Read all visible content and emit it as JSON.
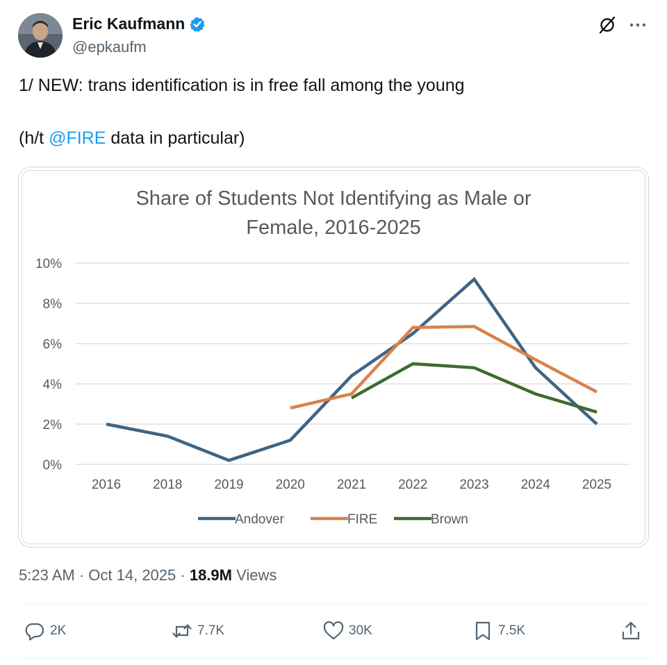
{
  "author": {
    "name": "Eric Kaufmann",
    "handle": "@epkaufm"
  },
  "tweet": {
    "line1": "1/ NEW: trans identification is in free fall among the young",
    "line2_prefix": "(h/t ",
    "line2_mention": "@FIRE",
    "line2_suffix": " data in particular)"
  },
  "meta": {
    "time": "5:23 AM",
    "sep1": " · ",
    "date": "Oct 14, 2025",
    "sep2": " · ",
    "views_count": "18.9M",
    "views_label": " Views"
  },
  "actions": {
    "replies": "2K",
    "reposts": "7.7K",
    "likes": "30K",
    "bookmarks": "7.5K"
  },
  "icons": [
    "verified-badge-icon",
    "grok-icon",
    "more-icon",
    "reply-icon",
    "repost-icon",
    "like-icon",
    "bookmark-icon",
    "share-icon"
  ],
  "colors": {
    "accent": "#1d9bf0",
    "Andover": "#3f6482",
    "FIRE": "#d9824a",
    "Brown": "#3e6b2f"
  },
  "chart_data": {
    "type": "line",
    "title_line1": "Share of Students Not Identifying as Male or",
    "title_line2": "Female, 2016-2025",
    "categories": [
      "2016",
      "2018",
      "2019",
      "2020",
      "2021",
      "2022",
      "2023",
      "2024",
      "2025"
    ],
    "y_ticks": [
      "0%",
      "2%",
      "4%",
      "6%",
      "8%",
      "10%"
    ],
    "ylim": [
      0,
      10
    ],
    "grid": true,
    "legend_position": "bottom",
    "series": [
      {
        "name": "Andover",
        "values": [
          2.0,
          1.4,
          0.2,
          1.2,
          4.4,
          6.5,
          9.2,
          4.8,
          2.0
        ]
      },
      {
        "name": "FIRE",
        "values": [
          null,
          null,
          null,
          2.8,
          3.5,
          6.8,
          6.85,
          5.2,
          3.6
        ]
      },
      {
        "name": "Brown",
        "values": [
          null,
          null,
          null,
          null,
          3.3,
          5.0,
          4.8,
          3.5,
          2.6
        ]
      }
    ]
  }
}
